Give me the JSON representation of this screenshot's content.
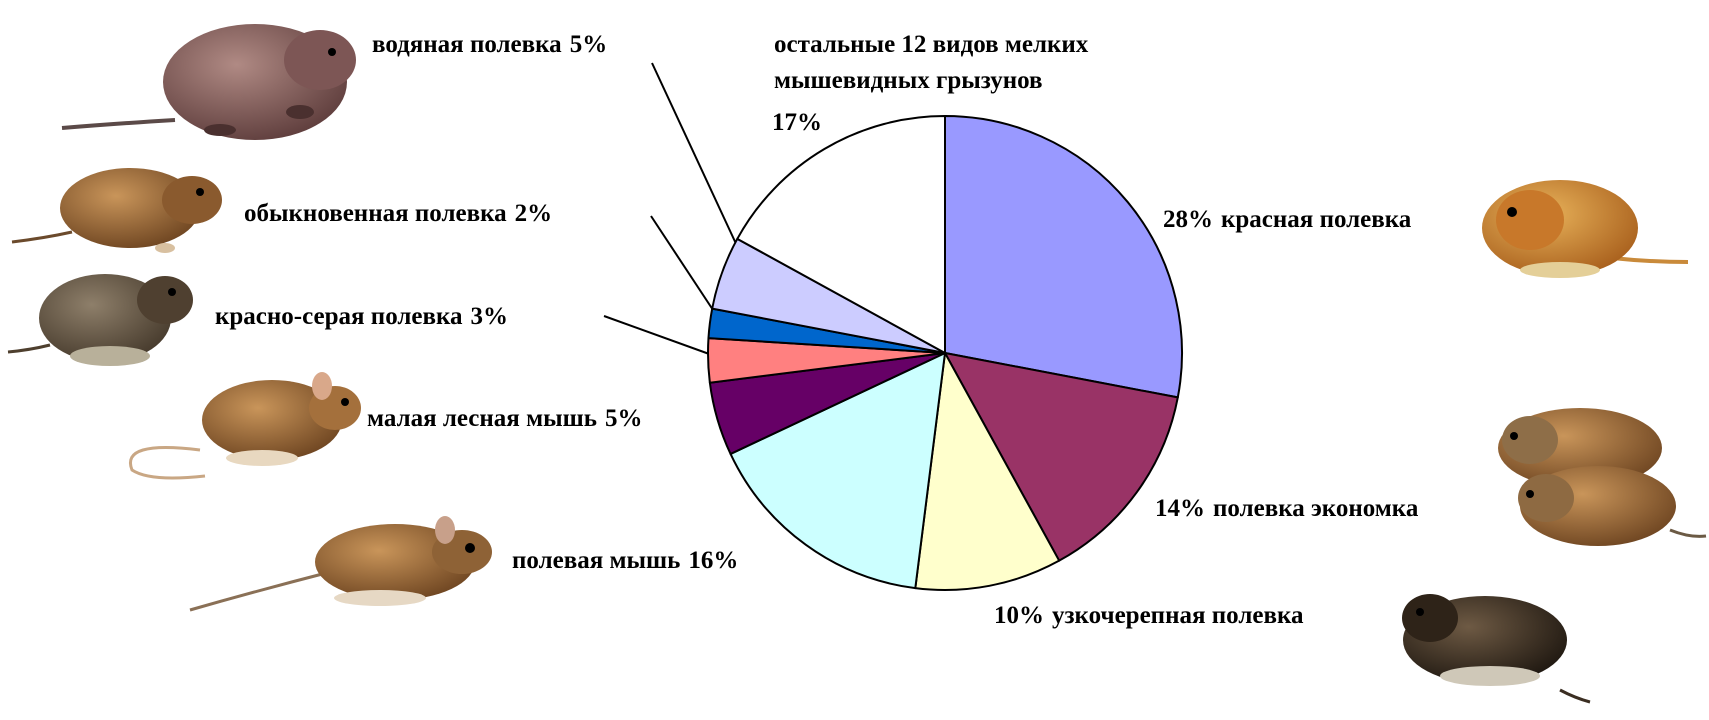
{
  "chart_data": {
    "type": "pie",
    "start": "12 o'clock, clockwise",
    "slices": [
      {
        "label": "красная полевка",
        "value": 28,
        "pct": "28%",
        "color": "#9999ff"
      },
      {
        "label": "полевка экономка",
        "value": 14,
        "pct": "14%",
        "color": "#993366"
      },
      {
        "label": "узкочерепная полевка",
        "value": 10,
        "pct": "10%",
        "color": "#ffffcc"
      },
      {
        "label": "полевая мышь",
        "value": 16,
        "pct": "16%",
        "color": "#ccffff"
      },
      {
        "label": "малая лесная мышь",
        "value": 5,
        "pct": "5%",
        "color": "#660066"
      },
      {
        "label": "красно-серая полевка",
        "value": 3,
        "pct": "3%",
        "color": "#ff8080"
      },
      {
        "label": "обыкновенная полевка",
        "value": 2,
        "pct": "2%",
        "color": "#0066cc"
      },
      {
        "label": "водяная полевка",
        "value": 5,
        "pct": "5%",
        "color": "#ccccff"
      },
      {
        "label": "остальные 12 видов мелких мышевидных грызунов",
        "value": 17,
        "pct": "17%",
        "color": "#ffffff"
      }
    ]
  },
  "labels": {
    "vodyanaya": {
      "name": "водяная полевка",
      "pct": "5%"
    },
    "ostalnye": {
      "line1": "остальные 12 видов мелких",
      "line2": "мышевидных грызунов",
      "pct": "17%"
    },
    "obyknovennaya": {
      "name": "обыкновенная полевка",
      "pct": "2%"
    },
    "krasno_seraya": {
      "name": "красно-серая полевка",
      "pct": "3%"
    },
    "malaya_lesnaya": {
      "name": "малая лесная мышь",
      "pct": "5%"
    },
    "polevaya": {
      "name": "полевая мышь",
      "pct": "16%"
    },
    "krasnaya": {
      "name": "красная полевка",
      "pct": "28%"
    },
    "ekonomka": {
      "name": "полевка экономка",
      "pct": "14%"
    },
    "uzkocherepnaya": {
      "name": "узкочерепная полевка",
      "pct": "10%"
    }
  },
  "illustrations": [
    "water-vole-image",
    "common-vole-image",
    "grey-red-vole-image",
    "wood-mouse-image",
    "field-mouse-image",
    "red-vole-image",
    "root-vole-image",
    "narrow-skulled-vole-image"
  ]
}
